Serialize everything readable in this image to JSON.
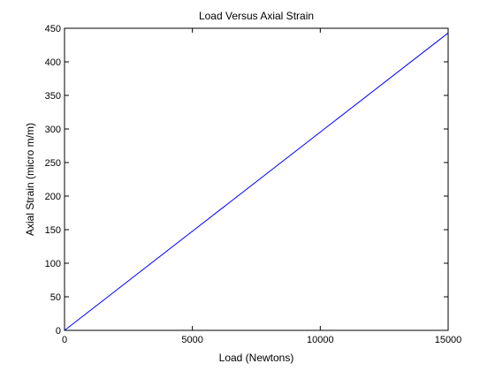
{
  "chart_data": {
    "type": "line",
    "title": "Load Versus Axial Strain",
    "xlabel": "Load (Newtons)",
    "ylabel": "Axial Strain (micro m/m)",
    "xlim": [
      0,
      15000
    ],
    "ylim": [
      0,
      450
    ],
    "xticks": [
      0,
      5000,
      10000,
      15000
    ],
    "yticks": [
      0,
      50,
      100,
      150,
      200,
      250,
      300,
      350,
      400,
      450
    ],
    "xtick_labels": [
      "0",
      "5000",
      "10000",
      "15000"
    ],
    "ytick_labels": [
      "0",
      "50",
      "100",
      "150",
      "200",
      "250",
      "300",
      "350",
      "400",
      "450"
    ],
    "grid": false,
    "series": [
      {
        "name": "Axial Strain",
        "color": "#0000ff",
        "x": [
          0,
          15000
        ],
        "y": [
          0,
          443
        ]
      }
    ]
  }
}
